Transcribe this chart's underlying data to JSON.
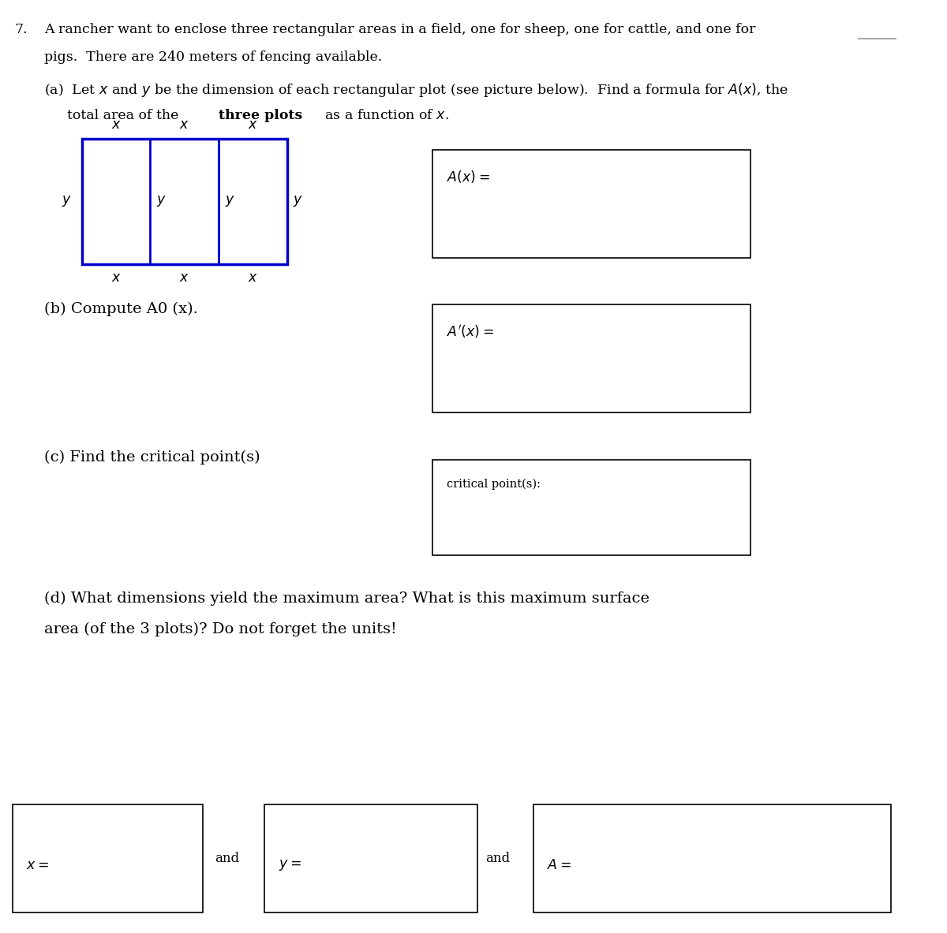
{
  "bg_color": "#ffffff",
  "intro_text_line1": "A rancher want to enclose three rectangular areas in a field, one for sheep, one for cattle, and one for",
  "intro_text_line2": "pigs.  There are 240 meters of fencing available.",
  "part_b_text": "(b) Compute A0 (x).",
  "part_c_text": "(c) Find the critical point(s)",
  "part_d_text_line1": "(d) What dimensions yield the maximum area? What is this maximum surface",
  "part_d_text_line2": "area (of the 3 plots)? Do not forget the units!",
  "blue_rect_color": "#0000cc",
  "label_critical": "critical point(s):"
}
